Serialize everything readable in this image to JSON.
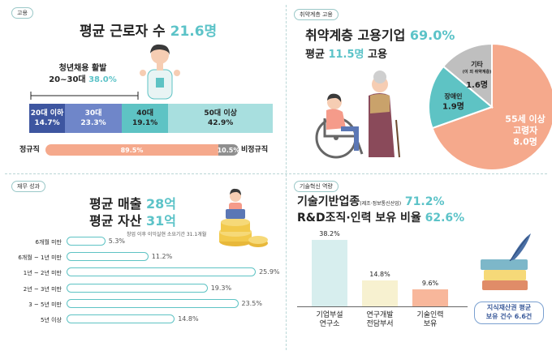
{
  "q1": {
    "tag": "고용",
    "title_prefix": "평균 근로자 수 ",
    "title_value": "21.6명",
    "youth_label": "청년채용 활발",
    "youth_sub": "20~30대 ",
    "youth_value": "38.0%"
  },
  "q2": {
    "tag": "취약계층 고용",
    "title_prefix": "취약계층 고용기업 ",
    "title_value": "69.0%",
    "sub_prefix": "평균 ",
    "sub_value": "11.5명",
    "sub_suffix": " 고용"
  },
  "q3": {
    "tag": "재무 성과",
    "line1_prefix": "평균 매출 ",
    "line1_value": "28억",
    "line2_prefix": "평균 자산 ",
    "line2_value": "31억",
    "note": "창업 이후 이익실현 소요기간 31.1개월"
  },
  "q4": {
    "tag": "기술혁신 역량",
    "line1_prefix": "기술기반업종",
    "line1_small": "(제조·정보통신산업)",
    "line1_value": " 71.2%",
    "line2_prefix": "R&D조직·인력 보유 비율 ",
    "line2_value": "62.6%",
    "ip_line1": "지식재산권 평균",
    "ip_line2": "보유 건수 6.6건"
  },
  "chart_data": [
    {
      "type": "bar",
      "orientation": "stacked-horizontal",
      "title": "평균 근로자 수 21.6명",
      "categories": [
        "20대 이하",
        "30대",
        "40대",
        "50대 이상"
      ],
      "values": [
        14.7,
        23.3,
        19.1,
        42.9
      ],
      "labels": [
        "14.7%",
        "23.3%",
        "19.1%",
        "42.9%"
      ],
      "colors": [
        "#3e56a0",
        "#6f86c9",
        "#5ec3c4",
        "#a8dfdf"
      ]
    },
    {
      "type": "bar",
      "orientation": "stacked-horizontal",
      "categories": [
        "정규직",
        "비정규직"
      ],
      "values": [
        89.5,
        10.5
      ],
      "labels": [
        "89.5%",
        "10.5%"
      ],
      "colors": [
        "#f5a98c",
        "#8f8f8f"
      ]
    },
    {
      "type": "pie",
      "title": "취약계층 고용기업 69.0%",
      "slices": [
        {
          "label": "55세 이상 고령자",
          "value": 8.0,
          "display": "8.0명",
          "color": "#f5a98c"
        },
        {
          "label": "장애인",
          "value": 1.9,
          "display": "1.9명",
          "color": "#5ec3c4"
        },
        {
          "label": "기타",
          "sublabel": "(이 외 취약계층)",
          "value": 1.6,
          "display": "1.6명",
          "color": "#bfbfbf"
        }
      ]
    },
    {
      "type": "bar",
      "orientation": "horizontal",
      "categories": [
        "6개월 미만",
        "6개월 ~ 1년 미만",
        "1년 ~ 2년 미만",
        "2년 ~ 3년 미만",
        "3 ~ 5년 미만",
        "5년 이상"
      ],
      "values": [
        5.3,
        11.2,
        25.9,
        19.3,
        23.5,
        14.8
      ],
      "labels": [
        "5.3%",
        "11.2%",
        "25.9%",
        "19.3%",
        "23.5%",
        "14.8%"
      ],
      "colors": [
        "#5ec3c4"
      ]
    },
    {
      "type": "bar",
      "orientation": "vertical",
      "categories": [
        "기업부설\n연구소",
        "연구개발\n전담부서",
        "기술인력\n보유"
      ],
      "values": [
        38.2,
        14.8,
        9.6
      ],
      "labels": [
        "38.2%",
        "14.8%",
        "9.6%"
      ],
      "colors": [
        "#d7eeee",
        "#f7f1d0",
        "#f8b79b"
      ]
    }
  ]
}
